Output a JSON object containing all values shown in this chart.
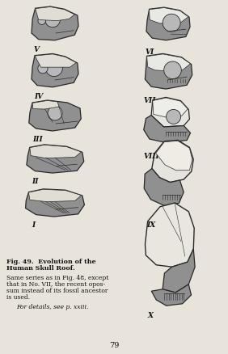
{
  "background_color": "#e8e4dc",
  "page_number": "79",
  "title_line1": "Fig. 49.  Evolution of the",
  "title_line2": "Human Skull Roof.",
  "cap1": "Same series as in Fig. 48, except",
  "cap2": "that in No. VII, the recent opos-",
  "cap3": "sum instead of its fossil ancestor",
  "cap4": "is used.",
  "cap5": "For details, see p. xxiii.",
  "labels_left": [
    "V",
    "IV",
    "III",
    "II",
    "I"
  ],
  "labels_right": [
    "VI",
    "VII",
    "VIII",
    "IX",
    "X"
  ],
  "gray_dark": "#707070",
  "gray_med": "#909090",
  "gray_light": "#b8b8b8",
  "white_area": "#e0ddd5",
  "outline": "#282828",
  "fig_width": 2.82,
  "fig_height": 4.38,
  "dpi": 100
}
